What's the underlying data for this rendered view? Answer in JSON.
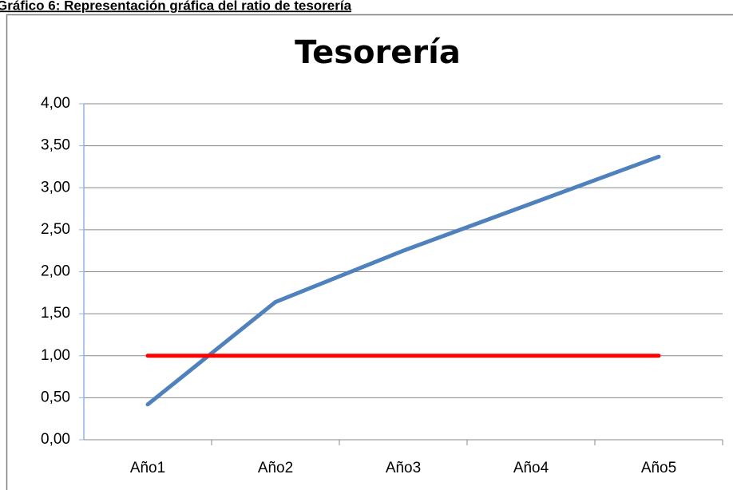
{
  "caption": "Gráfico 6: Representación gráfica del ratio de tesorería",
  "chart_data": {
    "type": "line",
    "title": "Tesorería",
    "categories": [
      "Año1",
      "Año2",
      "Año3",
      "Año4",
      "Año5"
    ],
    "series": [
      {
        "color": "#4f81bd",
        "values": [
          0.42,
          1.64,
          2.25,
          2.81,
          3.37
        ]
      },
      {
        "color": "#ff0000",
        "values": [
          1,
          1,
          1,
          1,
          1
        ]
      }
    ],
    "ylim": [
      0,
      4
    ],
    "yticks": [
      {
        "value": 0,
        "label": "0,00"
      },
      {
        "value": 0.5,
        "label": "0,50"
      },
      {
        "value": 1,
        "label": "1,00"
      },
      {
        "value": 1.5,
        "label": "1,50"
      },
      {
        "value": 2,
        "label": "2,00"
      },
      {
        "value": 2.5,
        "label": "2,50"
      },
      {
        "value": 3,
        "label": "3,00"
      },
      {
        "value": 3.5,
        "label": "3,50"
      },
      {
        "value": 4,
        "label": "4,00"
      }
    ],
    "grid": true
  }
}
